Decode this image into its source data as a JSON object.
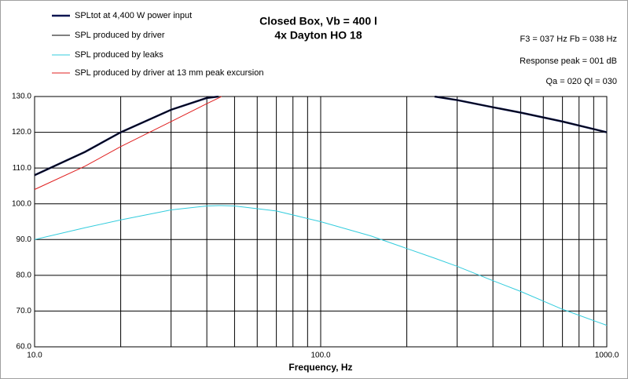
{
  "chart_data": {
    "type": "line",
    "title": "Closed Box, Vb = 400 l",
    "subtitle": "4x Dayton HO 18",
    "xlabel": "Frequency, Hz",
    "annotations": [
      "F3 = 037 Hz  Fb = 038 Hz",
      "Response peak = 001 dB",
      "Qa = 020  Ql = 030"
    ],
    "xscale": "log",
    "grid": true,
    "xlim": [
      10,
      1000
    ],
    "ylim": [
      60,
      130
    ],
    "xticks": [
      {
        "value": 10,
        "label": "10.0"
      },
      {
        "value": 100,
        "label": "100.0"
      },
      {
        "value": 1000,
        "label": "1000.0"
      }
    ],
    "xminorticks": [
      20,
      30,
      40,
      50,
      60,
      70,
      80,
      90,
      200,
      300,
      400,
      500,
      600,
      700,
      800,
      900
    ],
    "yticks": [
      {
        "value": 60,
        "label": "60.0"
      },
      {
        "value": 70,
        "label": "70.0"
      },
      {
        "value": 80,
        "label": "80.0"
      },
      {
        "value": 90,
        "label": "90.0"
      },
      {
        "value": 100,
        "label": "100.0"
      },
      {
        "value": 110,
        "label": "110.0"
      },
      {
        "value": 120,
        "label": "120.0"
      },
      {
        "value": 130,
        "label": "130.0"
      }
    ],
    "x": [
      10,
      15,
      20,
      30,
      40,
      44,
      45,
      50,
      70,
      100,
      150,
      200,
      250,
      300,
      400,
      500,
      700,
      1000
    ],
    "series": [
      {
        "name": "SPLtot at 4,400 W power input",
        "color": "#0a1450",
        "width": 2.5,
        "values": [
          108,
          114.5,
          120,
          126.3,
          129.6,
          130,
          null,
          null,
          null,
          null,
          null,
          null,
          130,
          129,
          127,
          125.5,
          123,
          120
        ]
      },
      {
        "name": "SPL produced by driver",
        "color": "#000000",
        "width": 1,
        "values": [
          108,
          114.5,
          120,
          126.3,
          129.6,
          130,
          null,
          null,
          null,
          null,
          null,
          null,
          130,
          129,
          127,
          125.5,
          123,
          120
        ]
      },
      {
        "name": "SPL produced by leaks",
        "color": "#33ccdd",
        "width": 1,
        "values": [
          90,
          93.3,
          95.5,
          98.3,
          99.4,
          99.5,
          99.5,
          99.4,
          98,
          95,
          91,
          87.5,
          84.8,
          82.5,
          78.5,
          75.5,
          70.5,
          66
        ]
      },
      {
        "name": "SPL produced by driver at 13 mm peak excursion",
        "color": "#e02020",
        "width": 1,
        "values": [
          104,
          110.5,
          116,
          123,
          128,
          129.6,
          130,
          null,
          null,
          null,
          null,
          null,
          null,
          null,
          null,
          null,
          null,
          null
        ]
      }
    ]
  }
}
